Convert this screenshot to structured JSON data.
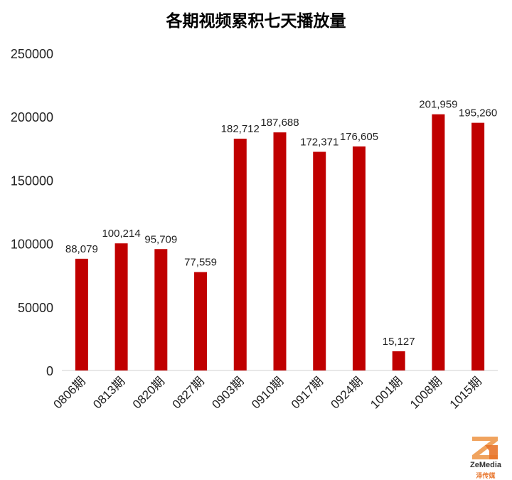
{
  "chart_data": {
    "type": "bar",
    "title": "各期视频累积七天播放量",
    "xlabel": "",
    "ylabel": "",
    "ylim": [
      0,
      250000
    ],
    "yticks": [
      "0",
      "50000",
      "100000",
      "150000",
      "200000",
      "250000"
    ],
    "categories": [
      "0806期",
      "0813期",
      "0820期",
      "0827期",
      "0903期",
      "0910期",
      "0917期",
      "0924期",
      "1001期",
      "1008期",
      "1015期"
    ],
    "values": [
      88079,
      100214,
      95709,
      77559,
      182712,
      187688,
      172371,
      176605,
      15127,
      201959,
      195260
    ],
    "data_labels": [
      "88,079",
      "100,214",
      "95,709",
      "77,559",
      "182,712",
      "187,688",
      "172,371",
      "176,605",
      "15,127",
      "201,959",
      "195,260"
    ],
    "bar_color": "#c00000",
    "grid": false,
    "legend": "none"
  },
  "watermark": {
    "name": "ZeMedia",
    "sub": "泽传媒",
    "icon": "zemedia-logo-icon"
  }
}
